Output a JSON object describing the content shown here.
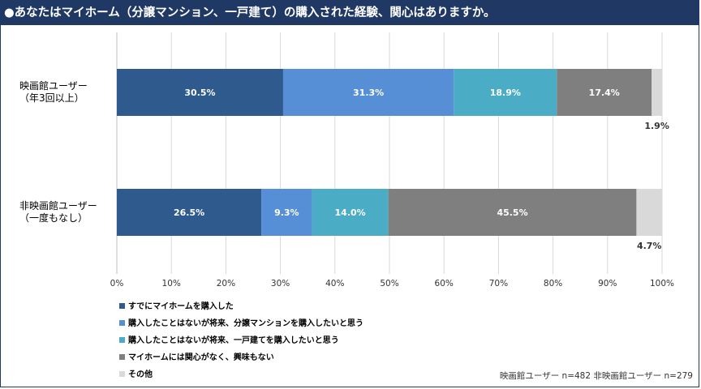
{
  "title": "●あなたはマイホーム（分譲マンション、一戸建て）の購入された経験、関心はありますか。",
  "note": "映画館ユーザー n=482  非映画館ユーザー n=279",
  "colors": {
    "header_bg": "#1f3864",
    "s1": "#2e5a8e",
    "s2": "#568fd6",
    "s3": "#4bacc6",
    "s4": "#7f7f7f",
    "s5": "#d9d9d9"
  },
  "chart_data": {
    "type": "bar",
    "orientation": "horizontal",
    "stacked": true,
    "categories": [
      [
        "映画館ユーザー",
        "（年3回以上）"
      ],
      [
        "非映画館ユーザー",
        "（一度もなし）"
      ]
    ],
    "series": [
      {
        "name": "すでにマイホームを購入した",
        "values": [
          30.5,
          26.5
        ],
        "labels": [
          "30.5%",
          "26.5%"
        ]
      },
      {
        "name": "購入したことはないが将来、分譲マンションを購入したいと思う",
        "values": [
          31.3,
          9.3
        ],
        "labels": [
          "31.3%",
          "9.3%"
        ]
      },
      {
        "name": "購入したことはないが将来、一戸建てを購入したいと思う",
        "values": [
          18.9,
          14.0
        ],
        "labels": [
          "18.9%",
          "14.0%"
        ]
      },
      {
        "name": "マイホームには関心がなく、興味もない",
        "values": [
          17.4,
          45.5
        ],
        "labels": [
          "17.4%",
          "45.5%"
        ]
      },
      {
        "name": "その他",
        "values": [
          1.9,
          4.7
        ],
        "labels": [
          "1.9%",
          "4.7%"
        ]
      }
    ],
    "xlim": [
      0,
      100
    ],
    "xticks": [
      "0%",
      "10%",
      "20%",
      "30%",
      "40%",
      "50%",
      "60%",
      "70%",
      "80%",
      "90%",
      "100%"
    ],
    "grid": true,
    "legend_position": "bottom-left"
  }
}
